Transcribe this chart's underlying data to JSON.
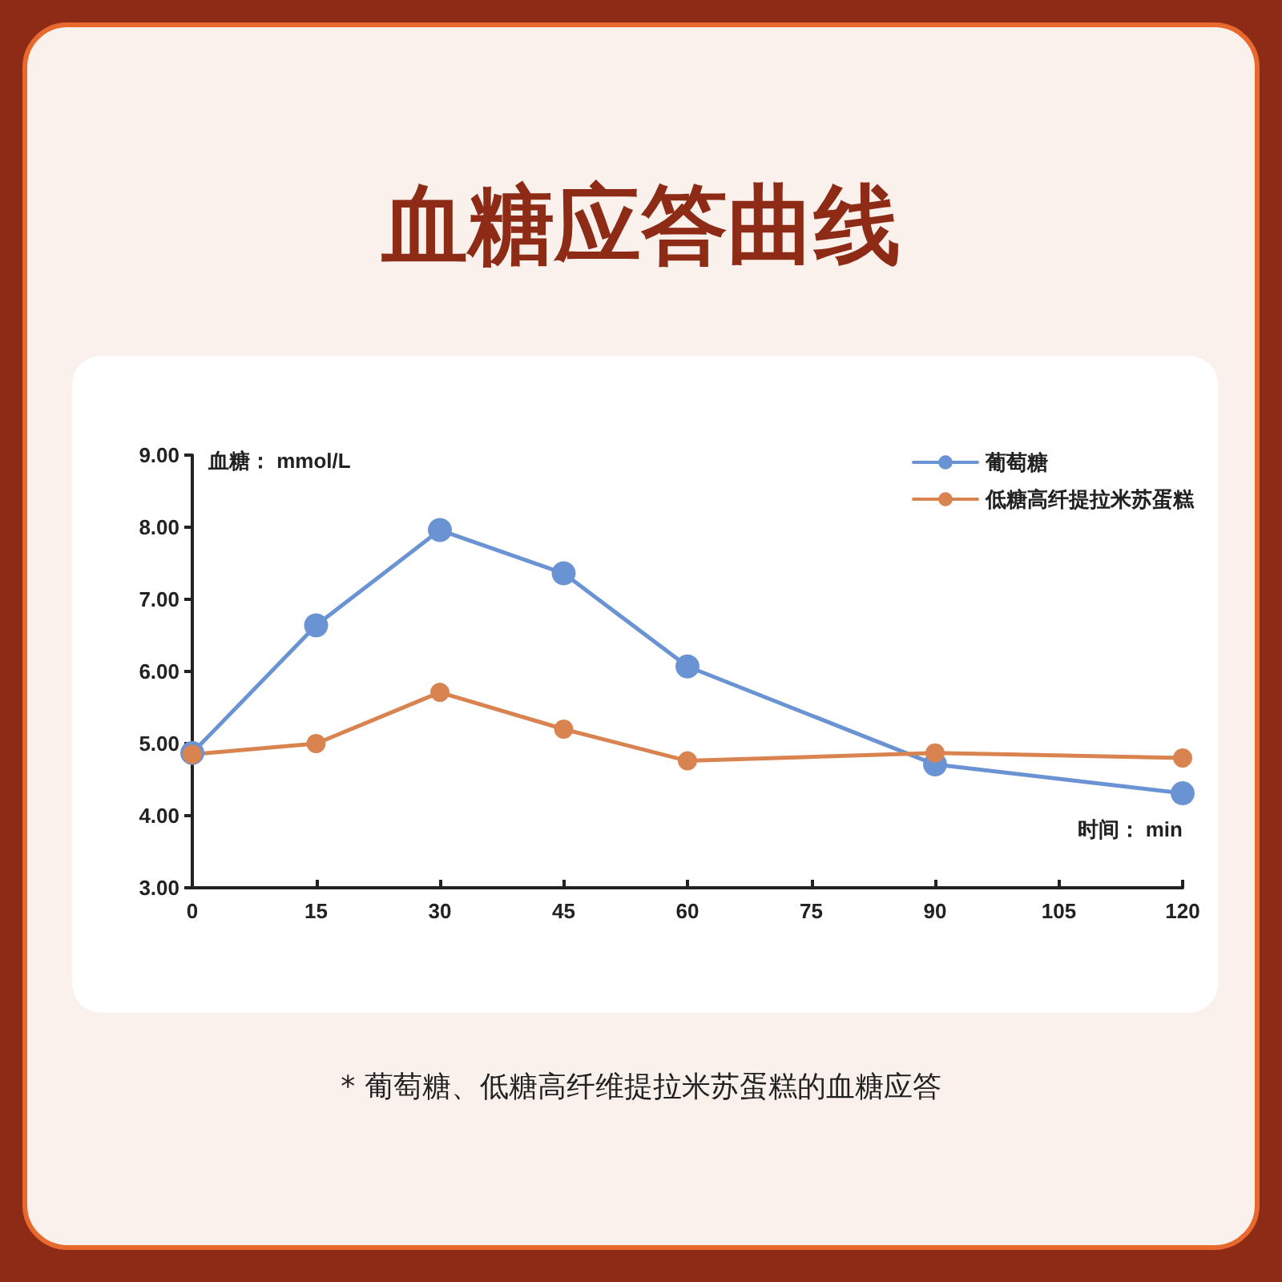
{
  "chart_data": {
    "type": "line",
    "title": "血糖应答曲线",
    "ylabel": "血糖： mmol/L",
    "xlabel": "时间： min",
    "annotations": [
      "*  葡萄糖、低糖高纤维提拉米苏蛋糕的血糖应答"
    ],
    "x": [
      0,
      15,
      30,
      45,
      60,
      90,
      120
    ],
    "series": [
      {
        "name": "葡萄糖",
        "color": "#6a93d4",
        "values": [
          4.87,
          6.64,
          7.96,
          7.36,
          6.07,
          4.71,
          4.31
        ]
      },
      {
        "name": "低糖高纤提拉米苏蛋糕",
        "color": "#d98450",
        "values": [
          4.85,
          5.0,
          5.71,
          5.2,
          4.76,
          4.87,
          4.8
        ]
      }
    ],
    "xlim": [
      0,
      120
    ],
    "xticks": [
      0,
      15,
      30,
      45,
      60,
      75,
      90,
      105,
      120
    ],
    "ylim": [
      3,
      9
    ],
    "yticks": [
      {
        "value": 3,
        "label": "3.00"
      },
      {
        "value": 4,
        "label": "4.00"
      },
      {
        "value": 5,
        "label": "5.00"
      },
      {
        "value": 6,
        "label": "6.00"
      },
      {
        "value": 7,
        "label": "7.00"
      },
      {
        "value": 8,
        "label": "8.00"
      },
      {
        "value": 9,
        "label": "9.00"
      }
    ],
    "grid": false,
    "legend": "top right",
    "marker": "circle",
    "line_style": "solid"
  }
}
